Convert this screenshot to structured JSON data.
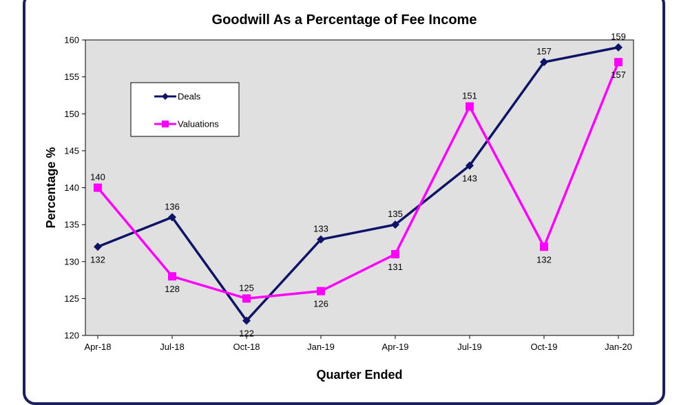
{
  "chart_data": {
    "type": "line",
    "title": "Goodwill As a Percentage of Fee Income",
    "xlabel": "Quarter Ended",
    "ylabel": "Percentage %",
    "ylim": [
      120,
      160
    ],
    "ystep": 5,
    "categories": [
      "Apr-18",
      "Jul-18",
      "Oct-18",
      "Jan-19",
      "Apr-19",
      "Jul-19",
      "Oct-19",
      "Jan-20"
    ],
    "series": [
      {
        "name": "Deals",
        "values": [
          132,
          136,
          122,
          133,
          135,
          143,
          157,
          159
        ],
        "color": "#0d1366",
        "marker": "diamond",
        "label_pos": [
          "below",
          "above",
          "below",
          "above",
          "above",
          "below",
          "above",
          "above"
        ]
      },
      {
        "name": "Valuations",
        "values": [
          140,
          128,
          125,
          126,
          131,
          151,
          132,
          157
        ],
        "color": "#ff00ff",
        "marker": "square",
        "label_pos": [
          "above",
          "below",
          "above",
          "below",
          "below",
          "above",
          "below",
          "below"
        ]
      }
    ],
    "grid": false,
    "plot_background": "#e0e0e0",
    "legend_position": "top-left-inside"
  }
}
